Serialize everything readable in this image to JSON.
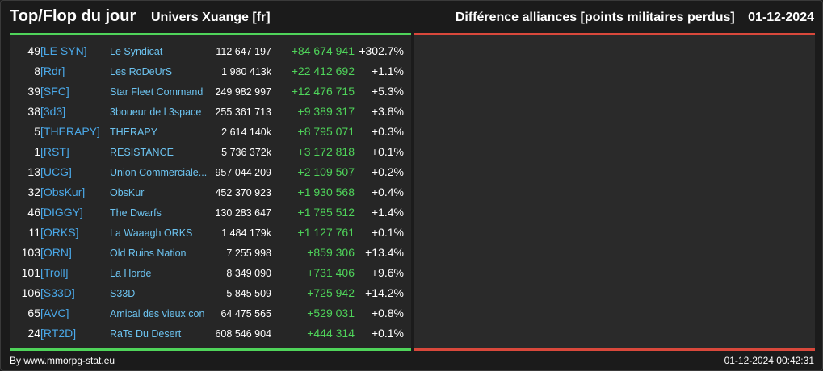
{
  "header": {
    "title": "Top/Flop du jour",
    "universe": "Univers Xuange [fr]",
    "category": "Différence alliances [points militaires perdus]",
    "date": "01-12-2024"
  },
  "rows": [
    {
      "rank": "49",
      "tag": "[LE SYN]",
      "name": "Le Syndicat",
      "points": "112 647 197",
      "diff": "+84 674 941",
      "pct": "+302.7%"
    },
    {
      "rank": "8",
      "tag": "[Rdr]",
      "name": "Les RoDeUrS",
      "points": "1 980 413k",
      "diff": "+22 412 692",
      "pct": "+1.1%"
    },
    {
      "rank": "39",
      "tag": "[SFC]",
      "name": "Star Fleet Command",
      "points": "249 982 997",
      "diff": "+12 476 715",
      "pct": "+5.3%"
    },
    {
      "rank": "38",
      "tag": "[3d3]",
      "name": "3boueur de l 3space",
      "points": "255 361 713",
      "diff": "+9 389 317",
      "pct": "+3.8%"
    },
    {
      "rank": "5",
      "tag": "[THERAPY]",
      "name": "THERAPY",
      "points": "2 614 140k",
      "diff": "+8 795 071",
      "pct": "+0.3%"
    },
    {
      "rank": "1",
      "tag": "[RST]",
      "name": "RESISTANCE",
      "points": "5 736 372k",
      "diff": "+3 172 818",
      "pct": "+0.1%"
    },
    {
      "rank": "13",
      "tag": "[UCG]",
      "name": "Union Commerciale...",
      "points": "957 044 209",
      "diff": "+2 109 507",
      "pct": "+0.2%"
    },
    {
      "rank": "32",
      "tag": "[ObsKur]",
      "name": "ObsKur",
      "points": "452 370 923",
      "diff": "+1 930 568",
      "pct": "+0.4%"
    },
    {
      "rank": "46",
      "tag": "[DIGGY]",
      "name": "The Dwarfs",
      "points": "130 283 647",
      "diff": "+1 785 512",
      "pct": "+1.4%"
    },
    {
      "rank": "11",
      "tag": "[ORKS]",
      "name": "La Waaagh ORKS",
      "points": "1 484 179k",
      "diff": "+1 127 761",
      "pct": "+0.1%"
    },
    {
      "rank": "103",
      "tag": "[ORN]",
      "name": "Old Ruins Nation",
      "points": "7 255 998",
      "diff": "+859 306",
      "pct": "+13.4%"
    },
    {
      "rank": "101",
      "tag": "[Troll]",
      "name": "La Horde",
      "points": "8 349 090",
      "diff": "+731 406",
      "pct": "+9.6%"
    },
    {
      "rank": "106",
      "tag": "[S33D]",
      "name": "S33D",
      "points": "5 845 509",
      "diff": "+725 942",
      "pct": "+14.2%"
    },
    {
      "rank": "65",
      "tag": "[AVC]",
      "name": "Amical des vieux con",
      "points": "64 475 565",
      "diff": "+529 031",
      "pct": "+0.8%"
    },
    {
      "rank": "24",
      "tag": "[RT2D]",
      "name": "RaTs Du Desert",
      "points": "608 546 904",
      "diff": "+444 314",
      "pct": "+0.1%"
    }
  ],
  "footer": {
    "source": "By www.mmorpg-stat.eu",
    "timestamp": "01-12-2024 00:42:31"
  },
  "colors": {
    "top_accent": "#4fd45a",
    "flop_accent": "#d9483b",
    "tag": "#4aa8e8",
    "name": "#6cc3f0"
  }
}
